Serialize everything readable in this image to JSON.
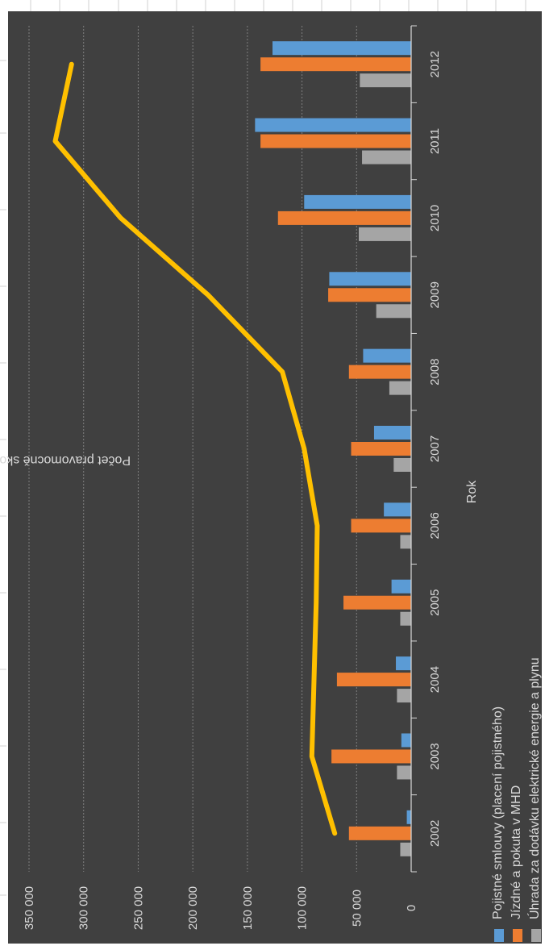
{
  "chart_data": {
    "type": "bar",
    "orientation": "rotated-90-clockwise",
    "title": "",
    "xlabel": "Rok",
    "ylabel": "Počet pravomocně skončených věcí",
    "ylim": [
      0,
      350000
    ],
    "yticks": [
      "0",
      "50 000",
      "100 000",
      "150 000",
      "200 000",
      "250 000",
      "300 000",
      "350 000"
    ],
    "grid": true,
    "legend_position": "bottom",
    "categories": [
      "2002",
      "2003",
      "2004",
      "2005",
      "2006",
      "2007",
      "2008",
      "2009",
      "2010",
      "2011",
      "2012"
    ],
    "series": [
      {
        "name": "Pojistné smlouvy (placení pojistného)",
        "type": "bar",
        "color": "#5b9bd5",
        "values": [
          4000,
          9000,
          14000,
          18000,
          25000,
          34000,
          44000,
          75000,
          98000,
          143000,
          127000
        ]
      },
      {
        "name": "Jízdné a pokuta v MHD",
        "type": "bar",
        "color": "#ed7d31",
        "values": [
          57000,
          73000,
          68000,
          62000,
          55000,
          55000,
          57000,
          76000,
          122000,
          138000,
          138000
        ]
      },
      {
        "name": "Úhrada za dodávku elektrické energie a plynu",
        "type": "bar",
        "color": "#a5a5a5",
        "values": [
          10000,
          13000,
          13000,
          10000,
          10000,
          16000,
          20000,
          32000,
          48000,
          45000,
          47000
        ]
      },
      {
        "name": "",
        "type": "line",
        "color": "#ffc000",
        "values": [
          70000,
          91000,
          89000,
          87000,
          86000,
          98000,
          118000,
          186000,
          266000,
          326000,
          311000
        ]
      }
    ]
  },
  "colors": {
    "chart_background": "#404040",
    "axis_line": "#d9d9d9",
    "gridline": "#7f7f7f"
  }
}
